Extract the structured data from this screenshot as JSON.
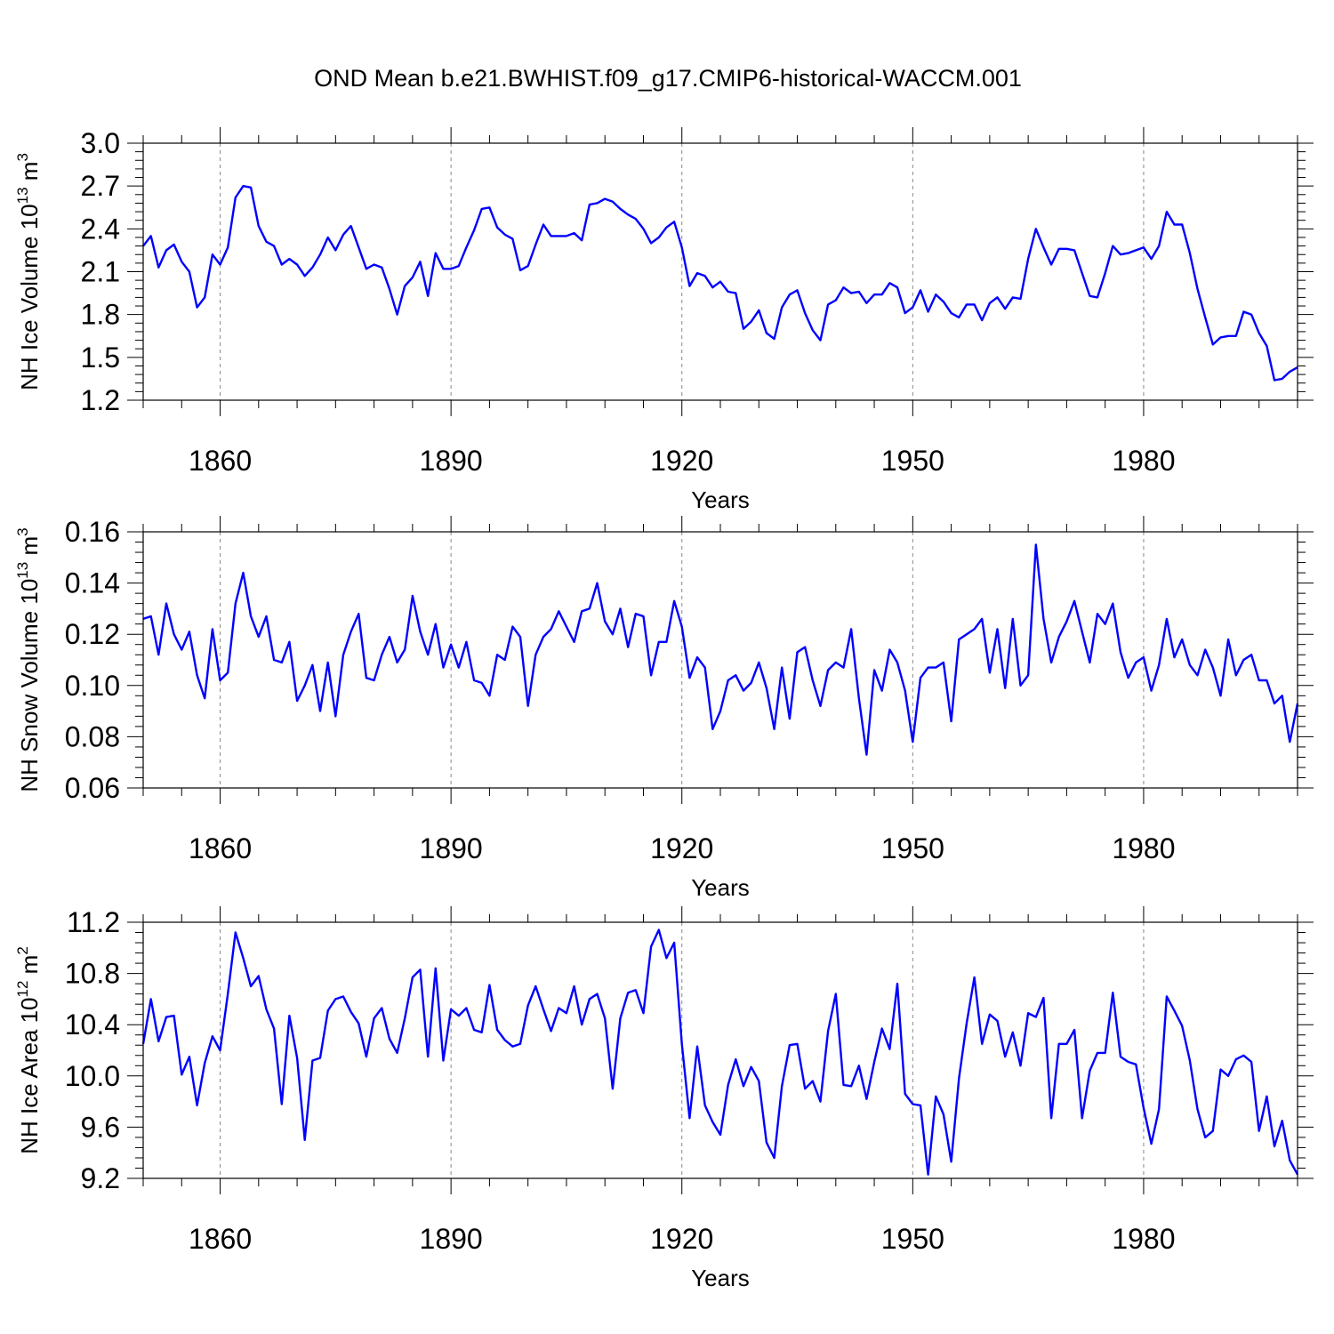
{
  "title": "OND Mean b.e21.BWHIST.f09_g17.CMIP6-historical-WACCM.001",
  "colors": {
    "line": "#0000ff",
    "axes": "#000000",
    "grid": "#888888"
  },
  "chart_data": [
    {
      "type": "line",
      "name": "ice-volume",
      "ylabel": "NH Ice Volume",
      "ylabel_base": "10",
      "ylabel_exp": "13",
      "ylabel_unit": "m",
      "ylabel_unit_exp": "3",
      "xlabel": "Years",
      "xlim": [
        1850,
        2000
      ],
      "ylim": [
        1.2,
        3.0
      ],
      "xticks": [
        1860,
        1890,
        1920,
        1950,
        1980
      ],
      "xtick_labels": [
        "1860",
        "1890",
        "1920",
        "1950",
        "1980"
      ],
      "yticks": [
        1.2,
        1.5,
        1.8,
        2.1,
        2.4,
        2.7,
        3.0
      ],
      "ytick_labels": [
        "1.2",
        "1.5",
        "1.8",
        "2.1",
        "2.4",
        "2.7",
        "3.0"
      ],
      "grid_x": true,
      "series": [
        {
          "name": "NH Ice Volume",
          "x_start": 1850,
          "values": [
            2.28,
            2.35,
            2.13,
            2.25,
            2.29,
            2.17,
            2.1,
            1.85,
            1.92,
            2.22,
            2.15,
            2.27,
            2.62,
            2.7,
            2.69,
            2.42,
            2.31,
            2.28,
            2.15,
            2.19,
            2.15,
            2.07,
            2.13,
            2.22,
            2.34,
            2.25,
            2.36,
            2.42,
            2.27,
            2.12,
            2.15,
            2.13,
            1.98,
            1.8,
            2.0,
            2.06,
            2.17,
            1.93,
            2.23,
            2.12,
            2.12,
            2.14,
            2.27,
            2.39,
            2.54,
            2.55,
            2.41,
            2.36,
            2.33,
            2.11,
            2.14,
            2.29,
            2.43,
            2.35,
            2.35,
            2.35,
            2.37,
            2.32,
            2.57,
            2.58,
            2.61,
            2.59,
            2.54,
            2.5,
            2.47,
            2.4,
            2.3,
            2.34,
            2.41,
            2.45,
            2.27,
            2.0,
            2.09,
            2.07,
            1.99,
            2.03,
            1.96,
            1.95,
            1.7,
            1.75,
            1.83,
            1.67,
            1.63,
            1.85,
            1.94,
            1.97,
            1.81,
            1.69,
            1.62,
            1.87,
            1.9,
            1.99,
            1.95,
            1.96,
            1.88,
            1.94,
            1.94,
            2.02,
            1.99,
            1.81,
            1.85,
            1.97,
            1.82,
            1.94,
            1.89,
            1.81,
            1.78,
            1.87,
            1.87,
            1.76,
            1.88,
            1.92,
            1.84,
            1.92,
            1.91,
            2.19,
            2.4,
            2.27,
            2.15,
            2.26,
            2.26,
            2.25,
            2.09,
            1.93,
            1.92,
            2.09,
            2.28,
            2.22,
            2.23,
            2.25,
            2.27,
            2.19,
            2.28,
            2.52,
            2.43,
            2.43,
            2.23,
            1.98,
            1.78,
            1.59,
            1.64,
            1.65,
            1.65,
            1.82,
            1.8,
            1.67,
            1.58,
            1.34,
            1.35,
            1.4,
            1.43
          ]
        }
      ]
    },
    {
      "type": "line",
      "name": "snow-volume",
      "ylabel": "NH Snow Volume",
      "ylabel_base": "10",
      "ylabel_exp": "13",
      "ylabel_unit": "m",
      "ylabel_unit_exp": "3",
      "xlabel": "Years",
      "xlim": [
        1850,
        2000
      ],
      "ylim": [
        0.06,
        0.16
      ],
      "xticks": [
        1860,
        1890,
        1920,
        1950,
        1980
      ],
      "xtick_labels": [
        "1860",
        "1890",
        "1920",
        "1950",
        "1980"
      ],
      "yticks": [
        0.06,
        0.08,
        0.1,
        0.12,
        0.14,
        0.16
      ],
      "ytick_labels": [
        "0.06",
        "0.08",
        "0.10",
        "0.12",
        "0.14",
        "0.16"
      ],
      "grid_x": true,
      "series": [
        {
          "name": "NH Snow Volume",
          "x_start": 1850,
          "values": [
            0.126,
            0.127,
            0.112,
            0.132,
            0.12,
            0.114,
            0.121,
            0.104,
            0.095,
            0.122,
            0.102,
            0.105,
            0.132,
            0.144,
            0.127,
            0.119,
            0.127,
            0.11,
            0.109,
            0.117,
            0.094,
            0.1,
            0.108,
            0.09,
            0.109,
            0.088,
            0.112,
            0.121,
            0.128,
            0.103,
            0.102,
            0.112,
            0.119,
            0.109,
            0.114,
            0.135,
            0.121,
            0.112,
            0.124,
            0.107,
            0.116,
            0.107,
            0.117,
            0.102,
            0.101,
            0.096,
            0.112,
            0.11,
            0.123,
            0.119,
            0.092,
            0.112,
            0.119,
            0.122,
            0.129,
            0.123,
            0.117,
            0.129,
            0.13,
            0.14,
            0.125,
            0.12,
            0.13,
            0.115,
            0.128,
            0.127,
            0.104,
            0.117,
            0.117,
            0.133,
            0.123,
            0.103,
            0.111,
            0.107,
            0.083,
            0.09,
            0.102,
            0.104,
            0.098,
            0.101,
            0.109,
            0.099,
            0.083,
            0.107,
            0.087,
            0.113,
            0.115,
            0.102,
            0.092,
            0.106,
            0.109,
            0.107,
            0.122,
            0.095,
            0.073,
            0.106,
            0.098,
            0.114,
            0.109,
            0.098,
            0.078,
            0.103,
            0.107,
            0.107,
            0.109,
            0.086,
            0.118,
            0.12,
            0.122,
            0.126,
            0.105,
            0.122,
            0.099,
            0.126,
            0.1,
            0.104,
            0.155,
            0.126,
            0.109,
            0.119,
            0.125,
            0.133,
            0.121,
            0.109,
            0.128,
            0.124,
            0.132,
            0.113,
            0.103,
            0.109,
            0.111,
            0.098,
            0.108,
            0.126,
            0.111,
            0.118,
            0.108,
            0.104,
            0.114,
            0.107,
            0.096,
            0.118,
            0.104,
            0.11,
            0.112,
            0.102,
            0.102,
            0.093,
            0.096,
            0.078,
            0.093
          ]
        }
      ]
    },
    {
      "type": "line",
      "name": "ice-area",
      "ylabel": "NH Ice Area",
      "ylabel_base": "10",
      "ylabel_exp": "12",
      "ylabel_unit": "m",
      "ylabel_unit_exp": "2",
      "xlabel": "Years",
      "xlim": [
        1850,
        2000
      ],
      "ylim": [
        9.2,
        11.2
      ],
      "xticks": [
        1860,
        1890,
        1920,
        1950,
        1980
      ],
      "xtick_labels": [
        "1860",
        "1890",
        "1920",
        "1950",
        "1980"
      ],
      "yticks": [
        9.2,
        9.6,
        10.0,
        10.4,
        10.8,
        11.2
      ],
      "ytick_labels": [
        "9.2",
        "9.6",
        "10.0",
        "10.4",
        "10.8",
        "11.2"
      ],
      "grid_x": true,
      "series": [
        {
          "name": "NH Ice Area",
          "x_start": 1850,
          "values": [
            10.25,
            10.6,
            10.27,
            10.46,
            10.47,
            10.01,
            10.15,
            9.77,
            10.1,
            10.31,
            10.2,
            10.64,
            11.12,
            10.92,
            10.7,
            10.78,
            10.52,
            10.37,
            9.78,
            10.47,
            10.14,
            9.5,
            10.12,
            10.14,
            10.51,
            10.6,
            10.62,
            10.5,
            10.41,
            10.15,
            10.45,
            10.53,
            10.29,
            10.18,
            10.45,
            10.77,
            10.83,
            10.15,
            10.84,
            10.12,
            10.52,
            10.47,
            10.53,
            10.36,
            10.34,
            10.71,
            10.36,
            10.28,
            10.23,
            10.25,
            10.55,
            10.7,
            10.52,
            10.35,
            10.53,
            10.49,
            10.7,
            10.4,
            10.6,
            10.64,
            10.45,
            9.9,
            10.45,
            10.65,
            10.67,
            10.49,
            11.01,
            11.14,
            10.92,
            11.04,
            10.25,
            9.67,
            10.23,
            9.77,
            9.64,
            9.54,
            9.93,
            10.13,
            9.92,
            10.07,
            9.96,
            9.48,
            9.36,
            9.92,
            10.24,
            10.25,
            9.9,
            9.96,
            9.8,
            10.35,
            10.64,
            9.93,
            9.92,
            10.08,
            9.82,
            10.11,
            10.37,
            10.21,
            10.72,
            9.86,
            9.78,
            9.77,
            9.23,
            9.84,
            9.7,
            9.33,
            9.98,
            10.41,
            10.77,
            10.25,
            10.48,
            10.43,
            10.15,
            10.34,
            10.08,
            10.49,
            10.46,
            10.61,
            9.67,
            10.25,
            10.25,
            10.36,
            9.67,
            10.04,
            10.18,
            10.18,
            10.65,
            10.15,
            10.11,
            10.09,
            9.75,
            9.47,
            9.74,
            10.62,
            10.51,
            10.39,
            10.12,
            9.74,
            9.52,
            9.57,
            10.05,
            10.0,
            10.13,
            10.16,
            10.11,
            9.57,
            9.84,
            9.45,
            9.65,
            9.34,
            9.23
          ]
        }
      ]
    }
  ]
}
